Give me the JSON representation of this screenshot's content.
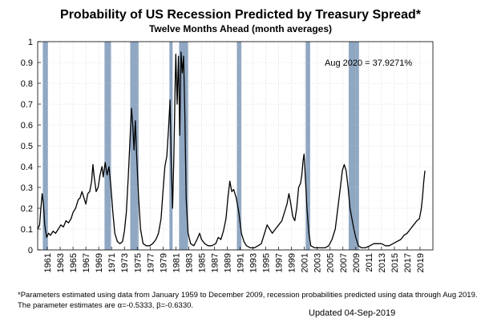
{
  "chart_data": {
    "type": "line",
    "title": "Probability of US Recession Predicted by Treasury Spread*",
    "subtitle": "Twelve Months Ahead (month averages)",
    "annotation": "Aug 2020 = 37.9271%",
    "xlim": [
      1959.5,
      2021.0
    ],
    "ylim": [
      0,
      1
    ],
    "y_ticks": [
      0,
      0.1,
      0.2,
      0.3,
      0.4,
      0.5,
      0.6,
      0.7,
      0.8,
      0.9,
      1
    ],
    "y_tick_labels": [
      "0",
      "0.1",
      "0.2",
      "0.3",
      "0.4",
      "0.5",
      "0.6",
      "0.7",
      "0.8",
      "0.9",
      "1"
    ],
    "x_ticks": [
      1961,
      1963,
      1965,
      1967,
      1969,
      1971,
      1973,
      1975,
      1977,
      1979,
      1981,
      1983,
      1985,
      1987,
      1989,
      1991,
      1993,
      1995,
      1997,
      1999,
      2001,
      2003,
      2005,
      2007,
      2009,
      2011,
      2013,
      2015,
      2017,
      2019
    ],
    "x_tick_labels": [
      "1961",
      "1963",
      "1965",
      "1967",
      "1969",
      "1971",
      "1973",
      "1975",
      "1977",
      "1979",
      "1981",
      "1983",
      "1985",
      "1987",
      "1989",
      "1991",
      "1993",
      "1995",
      "1997",
      "1999",
      "2001",
      "2003",
      "2005",
      "2007",
      "2009",
      "2011",
      "2013",
      "2015",
      "2017",
      "2019"
    ],
    "grid": true,
    "recession_color": "#8fa7c2",
    "recessions": [
      [
        1960.3,
        1961.1
      ],
      [
        1969.9,
        1970.9
      ],
      [
        1973.9,
        1975.2
      ],
      [
        1980.0,
        1980.5
      ],
      [
        1981.5,
        1982.9
      ],
      [
        1990.5,
        1991.2
      ],
      [
        2001.2,
        2001.9
      ],
      [
        2007.9,
        2009.5
      ]
    ],
    "series": [
      {
        "color": "#000000",
        "points": [
          [
            1959.5,
            0.1
          ],
          [
            1959.8,
            0.12
          ],
          [
            1960.0,
            0.2
          ],
          [
            1960.2,
            0.27
          ],
          [
            1960.4,
            0.22
          ],
          [
            1960.6,
            0.12
          ],
          [
            1960.9,
            0.06
          ],
          [
            1961.2,
            0.08
          ],
          [
            1961.5,
            0.07
          ],
          [
            1961.9,
            0.09
          ],
          [
            1962.3,
            0.08
          ],
          [
            1962.7,
            0.1
          ],
          [
            1963.1,
            0.12
          ],
          [
            1963.5,
            0.11
          ],
          [
            1963.9,
            0.14
          ],
          [
            1964.3,
            0.13
          ],
          [
            1964.7,
            0.15
          ],
          [
            1965.0,
            0.18
          ],
          [
            1965.4,
            0.2
          ],
          [
            1965.8,
            0.24
          ],
          [
            1966.1,
            0.25
          ],
          [
            1966.4,
            0.28
          ],
          [
            1966.7,
            0.25
          ],
          [
            1967.0,
            0.22
          ],
          [
            1967.3,
            0.27
          ],
          [
            1967.6,
            0.28
          ],
          [
            1967.9,
            0.33
          ],
          [
            1968.1,
            0.41
          ],
          [
            1968.3,
            0.35
          ],
          [
            1968.6,
            0.28
          ],
          [
            1968.9,
            0.3
          ],
          [
            1969.2,
            0.36
          ],
          [
            1969.5,
            0.4
          ],
          [
            1969.7,
            0.35
          ],
          [
            1970.0,
            0.42
          ],
          [
            1970.3,
            0.36
          ],
          [
            1970.6,
            0.4
          ],
          [
            1970.9,
            0.3
          ],
          [
            1971.2,
            0.18
          ],
          [
            1971.5,
            0.08
          ],
          [
            1971.9,
            0.04
          ],
          [
            1972.3,
            0.03
          ],
          [
            1972.7,
            0.04
          ],
          [
            1973.0,
            0.09
          ],
          [
            1973.3,
            0.18
          ],
          [
            1973.6,
            0.35
          ],
          [
            1973.9,
            0.55
          ],
          [
            1974.1,
            0.68
          ],
          [
            1974.3,
            0.6
          ],
          [
            1974.5,
            0.48
          ],
          [
            1974.7,
            0.62
          ],
          [
            1974.9,
            0.45
          ],
          [
            1975.2,
            0.25
          ],
          [
            1975.5,
            0.1
          ],
          [
            1975.9,
            0.03
          ],
          [
            1976.4,
            0.02
          ],
          [
            1976.9,
            0.02
          ],
          [
            1977.4,
            0.03
          ],
          [
            1977.9,
            0.05
          ],
          [
            1978.3,
            0.08
          ],
          [
            1978.7,
            0.15
          ],
          [
            1979.0,
            0.28
          ],
          [
            1979.3,
            0.4
          ],
          [
            1979.6,
            0.45
          ],
          [
            1979.9,
            0.6
          ],
          [
            1980.1,
            0.72
          ],
          [
            1980.3,
            0.4
          ],
          [
            1980.5,
            0.2
          ],
          [
            1980.7,
            0.45
          ],
          [
            1980.9,
            0.8
          ],
          [
            1981.0,
            0.94
          ],
          [
            1981.2,
            0.7
          ],
          [
            1981.4,
            0.93
          ],
          [
            1981.6,
            0.55
          ],
          [
            1981.8,
            0.95
          ],
          [
            1982.0,
            0.85
          ],
          [
            1982.2,
            0.93
          ],
          [
            1982.4,
            0.65
          ],
          [
            1982.6,
            0.25
          ],
          [
            1982.9,
            0.08
          ],
          [
            1983.3,
            0.03
          ],
          [
            1983.8,
            0.02
          ],
          [
            1984.3,
            0.05
          ],
          [
            1984.7,
            0.08
          ],
          [
            1985.0,
            0.05
          ],
          [
            1985.5,
            0.03
          ],
          [
            1986.0,
            0.02
          ],
          [
            1986.6,
            0.02
          ],
          [
            1987.2,
            0.03
          ],
          [
            1987.6,
            0.06
          ],
          [
            1988.0,
            0.05
          ],
          [
            1988.4,
            0.09
          ],
          [
            1988.8,
            0.15
          ],
          [
            1989.1,
            0.25
          ],
          [
            1989.4,
            0.33
          ],
          [
            1989.7,
            0.28
          ],
          [
            1990.0,
            0.29
          ],
          [
            1990.4,
            0.25
          ],
          [
            1990.8,
            0.18
          ],
          [
            1991.2,
            0.08
          ],
          [
            1991.6,
            0.04
          ],
          [
            1992.0,
            0.02
          ],
          [
            1992.6,
            0.01
          ],
          [
            1993.2,
            0.01
          ],
          [
            1993.8,
            0.02
          ],
          [
            1994.3,
            0.03
          ],
          [
            1994.8,
            0.08
          ],
          [
            1995.2,
            0.12
          ],
          [
            1995.6,
            0.1
          ],
          [
            1996.0,
            0.08
          ],
          [
            1996.5,
            0.1
          ],
          [
            1997.0,
            0.12
          ],
          [
            1997.5,
            0.14
          ],
          [
            1997.9,
            0.18
          ],
          [
            1998.3,
            0.22
          ],
          [
            1998.6,
            0.27
          ],
          [
            1998.9,
            0.22
          ],
          [
            1999.2,
            0.16
          ],
          [
            1999.5,
            0.14
          ],
          [
            1999.8,
            0.2
          ],
          [
            2000.1,
            0.3
          ],
          [
            2000.4,
            0.32
          ],
          [
            2000.6,
            0.36
          ],
          [
            2000.8,
            0.43
          ],
          [
            2000.95,
            0.46
          ],
          [
            2001.1,
            0.38
          ],
          [
            2001.4,
            0.2
          ],
          [
            2001.7,
            0.08
          ],
          [
            2002.0,
            0.02
          ],
          [
            2002.6,
            0.01
          ],
          [
            2003.4,
            0.01
          ],
          [
            2004.2,
            0.01
          ],
          [
            2004.8,
            0.02
          ],
          [
            2005.3,
            0.05
          ],
          [
            2005.8,
            0.1
          ],
          [
            2006.2,
            0.2
          ],
          [
            2006.6,
            0.3
          ],
          [
            2006.9,
            0.38
          ],
          [
            2007.2,
            0.41
          ],
          [
            2007.5,
            0.38
          ],
          [
            2007.8,
            0.3
          ],
          [
            2008.1,
            0.2
          ],
          [
            2008.4,
            0.15
          ],
          [
            2008.7,
            0.1
          ],
          [
            2009.0,
            0.06
          ],
          [
            2009.4,
            0.02
          ],
          [
            2009.9,
            0.01
          ],
          [
            2010.5,
            0.01
          ],
          [
            2011.2,
            0.02
          ],
          [
            2011.8,
            0.03
          ],
          [
            2012.4,
            0.03
          ],
          [
            2013.0,
            0.03
          ],
          [
            2013.6,
            0.02
          ],
          [
            2014.2,
            0.02
          ],
          [
            2014.8,
            0.03
          ],
          [
            2015.4,
            0.04
          ],
          [
            2016.0,
            0.05
          ],
          [
            2016.5,
            0.07
          ],
          [
            2017.0,
            0.08
          ],
          [
            2017.5,
            0.1
          ],
          [
            2018.0,
            0.12
          ],
          [
            2018.5,
            0.14
          ],
          [
            2018.9,
            0.15
          ],
          [
            2019.2,
            0.2
          ],
          [
            2019.4,
            0.26
          ],
          [
            2019.55,
            0.32
          ],
          [
            2019.65,
            0.35
          ],
          [
            2019.75,
            0.38
          ]
        ]
      }
    ]
  },
  "footnote_line1": "*Parameters estimated using data from January 1959 to December 2009, recession probabilities predicted using data through Aug 2019.",
  "footnote_line2": "The parameter estimates are α=-0.5333, β=-0.6330.",
  "updated": "Updated 04-Sep-2019"
}
